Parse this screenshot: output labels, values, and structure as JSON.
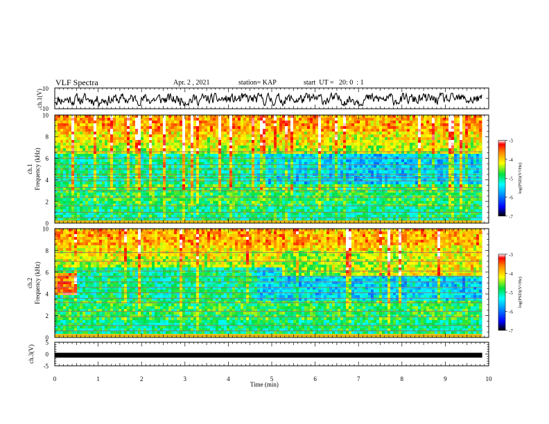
{
  "header": {
    "title": "VLF Spectra",
    "date": "Apr. 2 , 2021",
    "station": "station= KAP",
    "start": "start  UT =   20: 0  : 1"
  },
  "chart_data": [
    {
      "type": "line",
      "panel": "ch1-waveform",
      "ylabel": "ch.1(V)",
      "ylim": [
        -10,
        10
      ],
      "yticks": [
        "10",
        "-10"
      ],
      "xlim": [
        0,
        10
      ],
      "x_end": 9.85,
      "typical_range": [
        -6,
        6
      ]
    },
    {
      "type": "heatmap",
      "panel": "ch1-spectrogram",
      "ylabel_line1": "ch.1",
      "ylabel_line2": "Frequency  (kHz)",
      "ylim": [
        0,
        10
      ],
      "yticks": [
        "0",
        "2",
        "4",
        "6",
        "8",
        "10"
      ],
      "xlim": [
        0,
        10
      ],
      "x_end": 9.85,
      "hum_lines_khz": [
        0.2,
        0.5,
        1.0,
        1.6,
        2.4,
        3.0,
        3.3,
        3.9,
        4.2,
        4.5,
        5.0,
        5.4,
        6.0,
        6.6
      ],
      "band_change_min": 4.65,
      "colorbar": {
        "label": "log(PSD)(V²/Hz)",
        "ticks": [
          "-3",
          "-4",
          "-5",
          "-6",
          "-7"
        ],
        "range": [
          -7,
          -3
        ]
      }
    },
    {
      "type": "heatmap",
      "panel": "ch2-spectrogram",
      "ylabel_line1": "ch.2",
      "ylabel_line2": "Frequency  (kHz)",
      "ylim": [
        0,
        10
      ],
      "yticks": [
        "0",
        "2",
        "4",
        "6",
        "8",
        "10"
      ],
      "xlim": [
        0,
        10
      ],
      "x_end": 9.85,
      "hum_lines_khz": [
        0.2,
        0.6,
        1.1,
        1.9,
        2.4,
        3.2,
        3.6,
        4.1,
        4.6,
        5.1,
        5.6,
        6.1,
        7.0,
        7.8
      ],
      "band_change_min": 4.65,
      "colorbar": {
        "label": "log(PSD)(V²/Hz)",
        "ticks": [
          "-3",
          "-4",
          "-5",
          "-6",
          "-7"
        ],
        "range": [
          -7,
          -3
        ]
      }
    },
    {
      "type": "line",
      "panel": "ch3-waveform",
      "ylabel": "ch.3(V)",
      "ylim": [
        -5,
        5
      ],
      "yticks": [
        "5",
        "0",
        "-5"
      ],
      "xlim": [
        0,
        10
      ],
      "x_end": 9.85,
      "level": -0.5,
      "xlabel": "Time  (min)",
      "xticks": [
        "0",
        "1",
        "2",
        "3",
        "4",
        "5",
        "6",
        "7",
        "8",
        "9",
        "10"
      ]
    }
  ]
}
